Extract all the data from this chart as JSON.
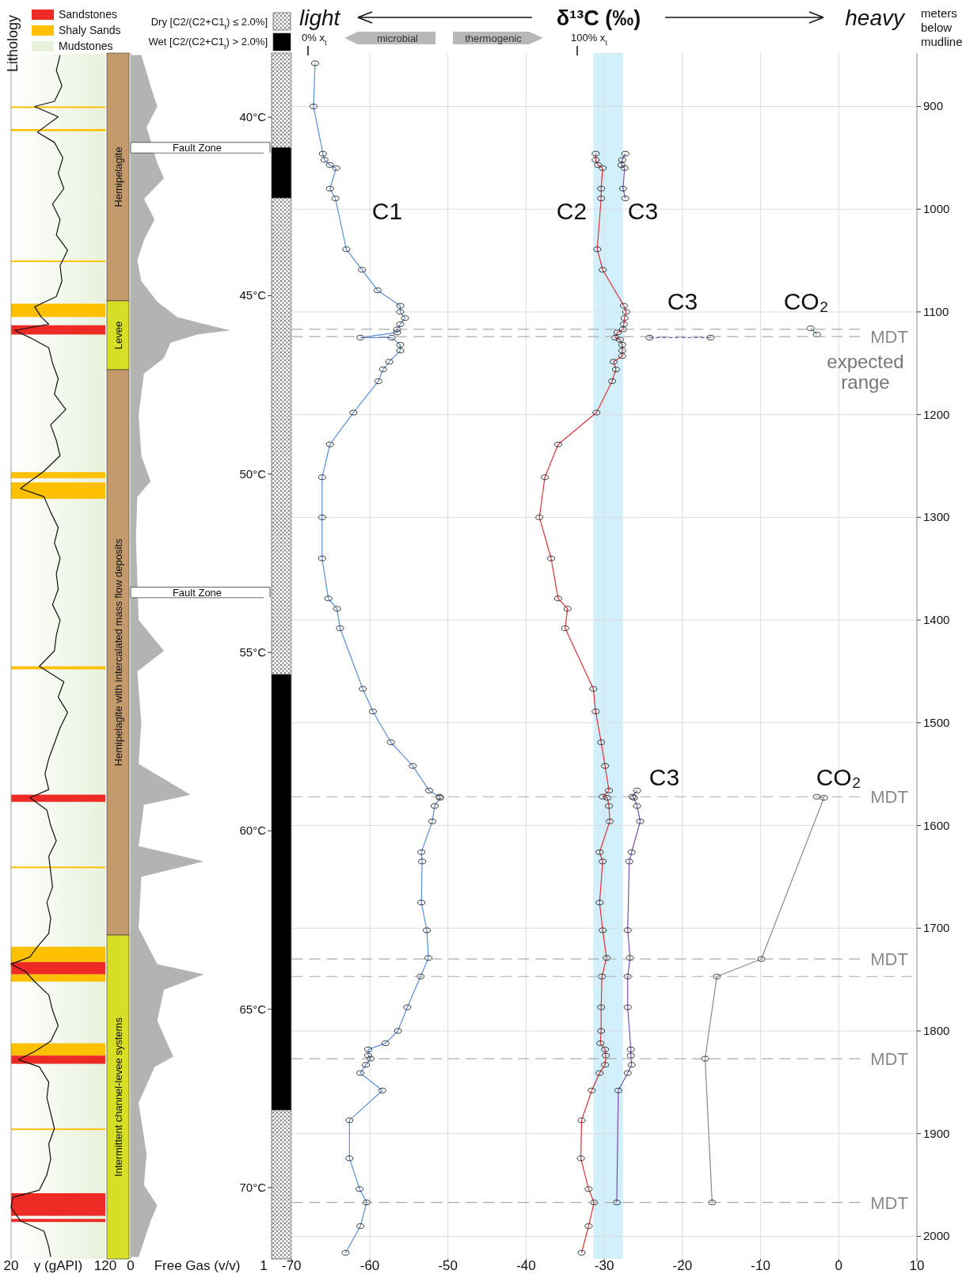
{
  "chart_data": [
    {
      "type": "line",
      "orientation": "horizontal",
      "legend_title": "Lithology",
      "legend": "top",
      "xlabel": "γ (gAPI)",
      "xlim": [
        20,
        120
      ],
      "xticks": [
        20,
        120
      ],
      "ylim": [
        2022,
        848
      ],
      "tick_labels": "x",
      "bands": [
        {
          "axis": "y",
          "from": 848,
          "to": 2022,
          "color": "#e8f1dc",
          "label": "Mudstones"
        },
        {
          "axis": "y",
          "from": 1092,
          "to": 1105,
          "color": "#ffc000",
          "label": "Shaly Sands"
        },
        {
          "axis": "y",
          "from": 1113,
          "to": 1122,
          "color": "#ee2a24",
          "label": "Sandstones"
        },
        {
          "axis": "y",
          "from": 922,
          "to": 924,
          "color": "#ffc000"
        },
        {
          "axis": "y",
          "from": 900,
          "to": 901.5,
          "color": "#ffc000"
        },
        {
          "axis": "y",
          "from": 1050,
          "to": 1051.5,
          "color": "#ffc000"
        },
        {
          "axis": "y",
          "from": 1256,
          "to": 1262,
          "color": "#ffc000"
        },
        {
          "axis": "y",
          "from": 1266,
          "to": 1282,
          "color": "#ffc000"
        },
        {
          "axis": "y",
          "from": 1445,
          "to": 1448,
          "color": "#ffc000"
        },
        {
          "axis": "y",
          "from": 1570,
          "to": 1577,
          "color": "#ee2a24"
        },
        {
          "axis": "y",
          "from": 1640,
          "to": 1641.5,
          "color": "#ffc000"
        },
        {
          "axis": "y",
          "from": 1718,
          "to": 1733,
          "color": "#ffc000"
        },
        {
          "axis": "y",
          "from": 1733,
          "to": 1745,
          "color": "#ee2a24"
        },
        {
          "axis": "y",
          "from": 1745,
          "to": 1752,
          "color": "#ffc000"
        },
        {
          "axis": "y",
          "from": 1812,
          "to": 1824,
          "color": "#ffc000"
        },
        {
          "axis": "y",
          "from": 1824,
          "to": 1832,
          "color": "#ee2a24"
        },
        {
          "axis": "y",
          "from": 1895,
          "to": 1896.5,
          "color": "#ffc000"
        },
        {
          "axis": "y",
          "from": 1958,
          "to": 1980,
          "color": "#ee2a24"
        },
        {
          "axis": "y",
          "from": 1983,
          "to": 1986,
          "color": "#ee2a24"
        }
      ],
      "series": [
        {
          "color": "#111111",
          "x": [
            850,
            865,
            880,
            895,
            900,
            910,
            925,
            935,
            950,
            965,
            980,
            995,
            1010,
            1025,
            1040,
            1055,
            1070,
            1085,
            1095,
            1105,
            1112,
            1118,
            1125,
            1135,
            1150,
            1165,
            1180,
            1195,
            1210,
            1225,
            1240,
            1255,
            1265,
            1272,
            1280,
            1295,
            1310,
            1325,
            1340,
            1355,
            1370,
            1385,
            1400,
            1415,
            1430,
            1445,
            1460,
            1475,
            1490,
            1505,
            1520,
            1535,
            1550,
            1565,
            1573,
            1585,
            1600,
            1615,
            1630,
            1645,
            1660,
            1675,
            1690,
            1705,
            1718,
            1728,
            1735,
            1742,
            1752,
            1765,
            1780,
            1795,
            1810,
            1820,
            1828,
            1835,
            1850,
            1865,
            1880,
            1895,
            1910,
            1925,
            1940,
            1955,
            1962,
            1972,
            1985,
            1995,
            2010,
            2020
          ],
          "values": [
            72,
            68,
            74,
            66,
            45,
            70,
            48,
            66,
            75,
            70,
            76,
            64,
            72,
            68,
            80,
            72,
            74,
            68,
            45,
            52,
            60,
            24,
            40,
            60,
            64,
            70,
            66,
            78,
            62,
            68,
            72,
            55,
            40,
            30,
            55,
            62,
            70,
            66,
            72,
            68,
            70,
            64,
            72,
            68,
            66,
            50,
            76,
            70,
            80,
            72,
            66,
            60,
            56,
            60,
            40,
            58,
            62,
            68,
            60,
            62,
            64,
            58,
            62,
            60,
            48,
            40,
            20,
            35,
            45,
            60,
            64,
            70,
            62,
            45,
            28,
            50,
            60,
            58,
            62,
            66,
            60,
            62,
            58,
            50,
            22,
            20,
            30,
            55,
            60,
            62
          ]
        }
      ]
    },
    {
      "type": "other",
      "annotations": [
        "Hemipelagite",
        "Levee",
        "Hemipelagite with intercalated mass flow deposits",
        "Intermittent channel-levee systems"
      ]
    },
    {
      "type": "area",
      "orientation": "horizontal",
      "xlabel": "Free Gas (v/v)",
      "xlim": [
        0,
        1
      ],
      "xticks": [
        0,
        1
      ],
      "ylim": [
        2022,
        848
      ],
      "tick_labels": "x",
      "ref_lines": [
        {
          "axis": "y",
          "value": 945,
          "label": "Fault Zone"
        },
        {
          "axis": "y",
          "value": 1378,
          "label": "Fault Zone"
        }
      ],
      "series": [
        {
          "color": "#b3b3b3",
          "x": [
            850,
            880,
            900,
            920,
            940,
            955,
            970,
            990,
            1010,
            1030,
            1050,
            1070,
            1090,
            1105,
            1115,
            1118,
            1122,
            1130,
            1145,
            1160,
            1200,
            1240,
            1265,
            1280,
            1320,
            1360,
            1400,
            1430,
            1450,
            1500,
            1540,
            1570,
            1580,
            1620,
            1635,
            1650,
            1700,
            1735,
            1745,
            1760,
            1790,
            1825,
            1835,
            1870,
            1920,
            1950,
            1970,
            1985,
            2020
          ],
          "values": [
            0.08,
            0.15,
            0.2,
            0.12,
            null,
            0.2,
            0.25,
            0.1,
            0.18,
            0.1,
            0.05,
            0.08,
            0.2,
            0.35,
            0.65,
            0.75,
            0.5,
            0.3,
            0.25,
            0.1,
            0.06,
            0.08,
            0.15,
            0.05,
            0.04,
            0.05,
            0.06,
            0.25,
            0.05,
            0.08,
            0.06,
            0.45,
            0.1,
            0.06,
            0.55,
            0.08,
            0.06,
            0.2,
            0.55,
            0.25,
            0.2,
            0.32,
            0.18,
            0.06,
            0.12,
            0.1,
            0.2,
            0.15,
            0.06
          ]
        }
      ]
    },
    {
      "type": "other",
      "annotations": [
        "Dry [C2/(C2+C1$_{t}$) ≤ 2.0%]",
        "Wet [C2/(C2+C1$_{t}$) > 2.0%]"
      ]
    },
    {
      "type": "line",
      "orientation": "horizontal",
      "title": "δ¹³C (‰)",
      "ylabel": "meters below mudline",
      "marker": "circle",
      "grid": true,
      "xlim": [
        -70,
        10
      ],
      "xticks": [
        -70,
        -60,
        -50,
        -40,
        -30,
        -20,
        -10,
        0,
        10
      ],
      "ylim": [
        2022,
        848
      ],
      "yticks": [
        900,
        1000,
        1100,
        1200,
        1300,
        1400,
        1500,
        1600,
        1700,
        1800,
        1900,
        2000
      ],
      "y2lim": [
        72.0,
        38.2
      ],
      "y2ticks": [
        {
          "value": 40,
          "label": "40°C"
        },
        {
          "value": 45,
          "label": "45°C"
        },
        {
          "value": 50,
          "label": "50°C"
        },
        {
          "value": 55,
          "label": "55°C"
        },
        {
          "value": 60,
          "label": "60°C"
        },
        {
          "value": 65,
          "label": "65°C"
        },
        {
          "value": 70,
          "label": "70°C"
        }
      ],
      "bands": [
        {
          "axis": "x",
          "from": -31.4,
          "to": -27.6,
          "color": "#cdeefb"
        }
      ],
      "ref_lines": [
        {
          "axis": "y",
          "value": 1117,
          "color": "#aaaaaa",
          "line_style": "dashed"
        },
        {
          "axis": "y",
          "value": 1124,
          "label": "MDT",
          "color": "#aaaaaa",
          "line_style": "dashed"
        },
        {
          "axis": "y",
          "value": 1572,
          "label": "MDT",
          "color": "#aaaaaa",
          "line_style": "dashed"
        },
        {
          "axis": "y",
          "value": 1730,
          "label": "MDT",
          "color": "#aaaaaa",
          "line_style": "dashed"
        },
        {
          "axis": "y",
          "value": 1747,
          "color": "#aaaaaa",
          "line_style": "dashed"
        },
        {
          "axis": "y",
          "value": 1827,
          "label": "MDT",
          "color": "#aaaaaa",
          "line_style": "dashed"
        },
        {
          "axis": "y",
          "value": 1967,
          "label": "MDT",
          "color": "#aaaaaa",
          "line_style": "dashed"
        }
      ],
      "annotations": [
        "light",
        "heavy",
        "microbial",
        "thermogenic",
        "0% x$_{t}$",
        "100% x$_{t}$",
        "C1",
        "C2",
        "C3",
        "C3",
        "CO₂",
        "expected range",
        "C3",
        "CO₂"
      ],
      "series": [
        {
          "color": "#5b8fd6",
          "x": [
            858,
            900,
            946,
            952,
            957,
            960,
            980,
            989.5,
            1039,
            1059,
            1079,
            1094,
            1100,
            1106,
            1112,
            1117,
            1120,
            1125,
            1125,
            1132,
            1137.6,
            1148.5,
            1156,
            1167.5,
            1198,
            1229,
            1261,
            1300,
            1340,
            1379,
            1389,
            1408,
            1467,
            1489,
            1519,
            1542,
            1566,
            1572,
            1573,
            1581,
            1596,
            1626,
            1635,
            1675,
            1702,
            1729,
            1747,
            1777,
            1800,
            1812,
            1818,
            1824,
            1827,
            1833,
            1841,
            1858,
            1887,
            1924,
            1954,
            1967,
            1990,
            2016
          ],
          "values": [
            -67.0,
            -67.2,
            -66.0,
            -65.8,
            -65.1,
            -64.3,
            -65.1,
            -64.4,
            -63.0,
            -61.0,
            -59.0,
            -56.1,
            -56.1,
            -55.5,
            -56.1,
            -56.5,
            -56.5,
            -61.2,
            -57.2,
            -56.1,
            -56.1,
            -57.5,
            -58.3,
            -58.9,
            -62.1,
            -65.1,
            -66.1,
            -66.1,
            -66.1,
            -65.3,
            -64.2,
            -63.8,
            -60.9,
            -59.6,
            -57.3,
            -54.5,
            -52.4,
            -51.1,
            -51.0,
            -51.7,
            -52.0,
            -53.4,
            -53.3,
            -53.4,
            -52.7,
            -52.5,
            -53.5,
            -55.2,
            -56.4,
            -58.0,
            -60.2,
            -60.2,
            -59.9,
            -60.5,
            -61.2,
            -58.4,
            -62.6,
            -62.6,
            -61.3,
            -60.4,
            -61.2,
            -63.1
          ]
        },
        {
          "color": "#e0303a",
          "x": [
            946,
            952,
            957,
            960,
            980,
            989.5,
            1039,
            1059,
            1094,
            1100,
            1106,
            1112,
            1117,
            1120,
            1125,
            1127,
            1132,
            1137.6,
            1143,
            1148.5,
            1156,
            1167.5,
            1198,
            1229,
            1261,
            1300,
            1340,
            1379,
            1389,
            1408,
            1467,
            1489,
            1519,
            1542,
            1566,
            1572,
            1573,
            1581,
            1596,
            1626,
            1635,
            1675,
            1702,
            1729,
            1747,
            1777,
            1800,
            1812,
            1818,
            1824,
            1833,
            1841,
            1858,
            1887,
            1924,
            1954,
            1967,
            1990,
            2016
          ],
          "values": [
            -31.1,
            -31.1,
            -30.8,
            -30.2,
            -30.4,
            -30.4,
            -30.9,
            -30.2,
            -27.5,
            -27.2,
            -27.4,
            -27.5,
            -27.6,
            -28.3,
            -28.6,
            -28.0,
            -27.7,
            -27.7,
            -27.7,
            -28.8,
            -28.5,
            -29.0,
            -31.0,
            -35.9,
            -37.6,
            -38.3,
            -36.8,
            -35.9,
            -34.7,
            -35.0,
            -31.4,
            -31.1,
            -30.4,
            -29.9,
            -29.4,
            -30.2,
            -29.6,
            -29.4,
            -29.3,
            -30.6,
            -30.2,
            -30.6,
            -30.2,
            -29.7,
            -30.3,
            -30.4,
            -30.4,
            -30.5,
            -29.9,
            -29.8,
            -29.9,
            -30.6,
            -31.6,
            -32.9,
            -33.0,
            -32.0,
            -31.3,
            -32.0,
            -32.9
          ]
        },
        {
          "color": "#7a4fb0",
          "x": [
            946,
            952,
            957,
            960,
            980,
            989.5
          ],
          "values": [
            -27.3,
            -27.7,
            -27.8,
            -27.4,
            -27.6,
            -27.3
          ]
        },
        {
          "color": "#7a4fb0",
          "line_style": "dashed",
          "x": [
            1125,
            1125
          ],
          "values": [
            -24.2,
            -16.4
          ]
        },
        {
          "color": "#7a4fb0",
          "x": [
            1566,
            1572,
            1573,
            1581,
            1596,
            1626,
            1635,
            1702,
            1729,
            1747,
            1777,
            1818,
            1824,
            1833,
            1841,
            1858,
            1967
          ],
          "values": [
            -25.8,
            -26.4,
            -26.2,
            -25.8,
            -25.4,
            -26.5,
            -26.8,
            -27.0,
            -26.7,
            -27.0,
            -27.0,
            -26.6,
            -26.6,
            -26.5,
            -27.0,
            -28.2,
            -28.4
          ]
        },
        {
          "color": "#5fae78",
          "x": [
            1116,
            1122
          ],
          "values": [
            -3.6,
            -2.8
          ]
        },
        {
          "color": "#7f8f7f",
          "x": [
            1572,
            1573,
            1730,
            1747,
            1827,
            1967
          ],
          "values": [
            -2.8,
            -1.9,
            -9.9,
            -15.6,
            -17.1,
            -16.2
          ]
        }
      ]
    }
  ]
}
